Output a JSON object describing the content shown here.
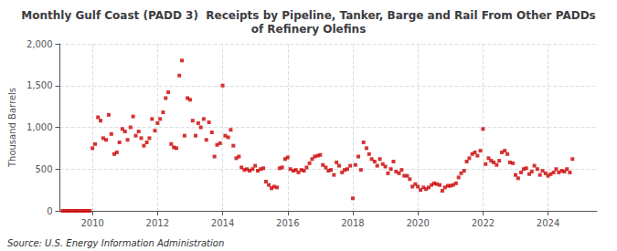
{
  "chart_data": {
    "type": "scatter",
    "title": "Monthly Gulf Coast (PADD 3)  Receipts by Pipeline, Tanker, Barge and Rail From Other PADDs\nof Refinery Olefins",
    "ylabel": "Thousand Barrels",
    "annotations": [
      "Source: U.S. Energy Information Administration"
    ],
    "color": "#cc0000",
    "marker": "square",
    "grid": true,
    "xlim": [
      2009.0,
      2025.5
    ],
    "xticks": [
      2010,
      2012,
      2014,
      2016,
      2018,
      2020,
      2022,
      2024
    ],
    "ylim": [
      0,
      2000
    ],
    "yticks": [
      0,
      500,
      {
        "value": 1000,
        "label": "1,000"
      },
      {
        "value": 1500,
        "label": "1,500"
      },
      {
        "value": 2000,
        "label": "2,000"
      }
    ],
    "x": [
      2009.08,
      2009.17,
      2009.25,
      2009.33,
      2009.42,
      2009.5,
      2009.58,
      2009.67,
      2009.75,
      2009.83,
      2009.92,
      2010.0,
      2010.08,
      2010.17,
      2010.25,
      2010.33,
      2010.42,
      2010.5,
      2010.58,
      2010.67,
      2010.75,
      2010.83,
      2010.92,
      2011.0,
      2011.08,
      2011.17,
      2011.25,
      2011.33,
      2011.42,
      2011.5,
      2011.58,
      2011.67,
      2011.75,
      2011.83,
      2011.92,
      2012.0,
      2012.08,
      2012.17,
      2012.25,
      2012.33,
      2012.42,
      2012.5,
      2012.58,
      2012.67,
      2012.75,
      2012.83,
      2012.92,
      2013.0,
      2013.08,
      2013.17,
      2013.25,
      2013.33,
      2013.42,
      2013.5,
      2013.58,
      2013.67,
      2013.75,
      2013.83,
      2013.92,
      2014.0,
      2014.08,
      2014.17,
      2014.25,
      2014.33,
      2014.42,
      2014.5,
      2014.58,
      2014.67,
      2014.75,
      2014.83,
      2014.92,
      2015.0,
      2015.08,
      2015.17,
      2015.25,
      2015.33,
      2015.42,
      2015.5,
      2015.58,
      2015.67,
      2015.75,
      2015.83,
      2015.92,
      2016.0,
      2016.08,
      2016.17,
      2016.25,
      2016.33,
      2016.42,
      2016.5,
      2016.58,
      2016.67,
      2016.75,
      2016.83,
      2016.92,
      2017.0,
      2017.08,
      2017.17,
      2017.25,
      2017.33,
      2017.42,
      2017.5,
      2017.58,
      2017.67,
      2017.75,
      2017.83,
      2017.92,
      2018.0,
      2018.08,
      2018.17,
      2018.25,
      2018.33,
      2018.42,
      2018.5,
      2018.58,
      2018.67,
      2018.75,
      2018.83,
      2018.92,
      2019.0,
      2019.08,
      2019.17,
      2019.25,
      2019.33,
      2019.42,
      2019.5,
      2019.58,
      2019.67,
      2019.75,
      2019.83,
      2019.92,
      2020.0,
      2020.08,
      2020.17,
      2020.25,
      2020.33,
      2020.42,
      2020.5,
      2020.58,
      2020.67,
      2020.75,
      2020.83,
      2020.92,
      2021.0,
      2021.08,
      2021.17,
      2021.25,
      2021.33,
      2021.42,
      2021.5,
      2021.58,
      2021.67,
      2021.75,
      2021.83,
      2021.92,
      2022.0,
      2022.08,
      2022.17,
      2022.25,
      2022.33,
      2022.42,
      2022.5,
      2022.58,
      2022.67,
      2022.75,
      2022.83,
      2022.92,
      2023.0,
      2023.08,
      2023.17,
      2023.25,
      2023.33,
      2023.42,
      2023.5,
      2023.58,
      2023.67,
      2023.75,
      2023.83,
      2023.92,
      2024.0,
      2024.08,
      2024.17,
      2024.25,
      2024.33,
      2024.42,
      2024.5,
      2024.58,
      2024.67,
      2024.75
    ],
    "values": [
      0,
      0,
      0,
      0,
      0,
      0,
      0,
      0,
      0,
      0,
      0,
      750,
      800,
      1120,
      1080,
      870,
      850,
      1150,
      920,
      680,
      700,
      820,
      980,
      950,
      850,
      1000,
      1130,
      900,
      950,
      870,
      780,
      820,
      870,
      1100,
      960,
      1050,
      1100,
      1180,
      1350,
      1420,
      800,
      760,
      750,
      1620,
      1800,
      900,
      1350,
      1330,
      1080,
      900,
      1050,
      1000,
      1100,
      850,
      1060,
      940,
      650,
      790,
      810,
      1500,
      900,
      880,
      970,
      780,
      630,
      650,
      520,
      490,
      500,
      480,
      500,
      540,
      480,
      500,
      510,
      350,
      310,
      270,
      290,
      280,
      510,
      520,
      620,
      640,
      500,
      480,
      490,
      460,
      490,
      480,
      520,
      570,
      620,
      650,
      660,
      670,
      550,
      520,
      480,
      490,
      430,
      580,
      540,
      460,
      490,
      500,
      540,
      150,
      550,
      650,
      490,
      820,
      750,
      680,
      620,
      590,
      540,
      620,
      560,
      530,
      450,
      500,
      590,
      470,
      450,
      490,
      420,
      420,
      380,
      290,
      320,
      290,
      250,
      280,
      260,
      280,
      310,
      330,
      320,
      310,
      240,
      280,
      300,
      300,
      310,
      330,
      400,
      450,
      480,
      590,
      630,
      680,
      700,
      660,
      720,
      980,
      560,
      630,
      600,
      580,
      550,
      600,
      700,
      720,
      680,
      580,
      570,
      430,
      390,
      460,
      500,
      510,
      440,
      470,
      540,
      500,
      430,
      480,
      450,
      420,
      440,
      460,
      500,
      460,
      480,
      470,
      500,
      460,
      620
    ]
  }
}
